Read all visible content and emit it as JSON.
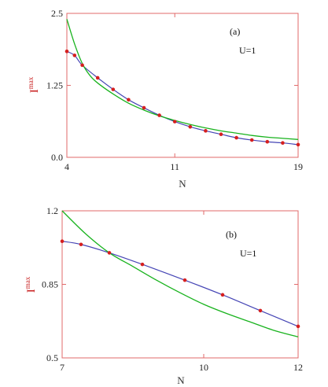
{
  "colors": {
    "frame": "#e06a6a",
    "fit_line": "#19b31e",
    "data_line": "#4545b5",
    "markers": "#d61f1f",
    "ylabel": "#c81e1e"
  },
  "chart_data": [
    {
      "type": "line",
      "panel_label": "(a)",
      "annotation": "U=1",
      "xlabel": "N",
      "ylabel": "I",
      "ylabel_sup": "max",
      "xlim": [
        4,
        19
      ],
      "ylim": [
        0,
        2.5
      ],
      "xticks": [
        4,
        11,
        19
      ],
      "xtick_labels": [
        "4",
        "11",
        "19"
      ],
      "yticks": [
        0,
        1.25,
        2.5
      ],
      "ytick_labels": [
        "0.0",
        "1.25",
        "2.5"
      ],
      "series": [
        {
          "role": "data",
          "markers": true,
          "x": [
            4,
            4.5,
            5,
            6,
            7,
            8,
            9,
            10,
            11,
            12,
            13,
            14,
            15,
            16,
            17,
            18,
            19
          ],
          "y": [
            1.84,
            1.77,
            1.6,
            1.38,
            1.18,
            1.0,
            0.86,
            0.73,
            0.62,
            0.53,
            0.46,
            0.4,
            0.34,
            0.3,
            0.27,
            0.25,
            0.22
          ]
        },
        {
          "role": "fit",
          "markers": false,
          "x": [
            4,
            4.5,
            5,
            5.5,
            6,
            7,
            8,
            9,
            10,
            11,
            12,
            13,
            14,
            15,
            16,
            17,
            18,
            19
          ],
          "y": [
            2.4,
            1.97,
            1.63,
            1.42,
            1.29,
            1.1,
            0.94,
            0.82,
            0.72,
            0.64,
            0.57,
            0.51,
            0.46,
            0.42,
            0.38,
            0.35,
            0.33,
            0.31
          ]
        }
      ]
    },
    {
      "type": "line",
      "panel_label": "(b)",
      "annotation": "U=1",
      "xlabel": "N",
      "ylabel": "I",
      "ylabel_sup": "max",
      "xlim": [
        7,
        12
      ],
      "ylim": [
        0.5,
        1.2
      ],
      "xticks": [
        7,
        10,
        12
      ],
      "xtick_labels": [
        "7",
        "10",
        "12"
      ],
      "yticks": [
        0.5,
        0.85,
        1.2
      ],
      "ytick_labels": [
        "0.5",
        "0.85",
        "1.2"
      ],
      "series": [
        {
          "role": "data",
          "markers": true,
          "x": [
            7,
            7.4,
            8,
            8.7,
            9.6,
            10.4,
            11.2,
            12
          ],
          "y": [
            1.055,
            1.04,
            1.0,
            0.945,
            0.87,
            0.8,
            0.725,
            0.65
          ]
        },
        {
          "role": "fit",
          "markers": false,
          "x": [
            7,
            7.5,
            8,
            8.5,
            9,
            9.5,
            10,
            10.5,
            11,
            11.5,
            12
          ],
          "y": [
            1.2,
            1.09,
            1.0,
            0.935,
            0.87,
            0.81,
            0.755,
            0.71,
            0.67,
            0.63,
            0.6
          ]
        }
      ]
    }
  ]
}
